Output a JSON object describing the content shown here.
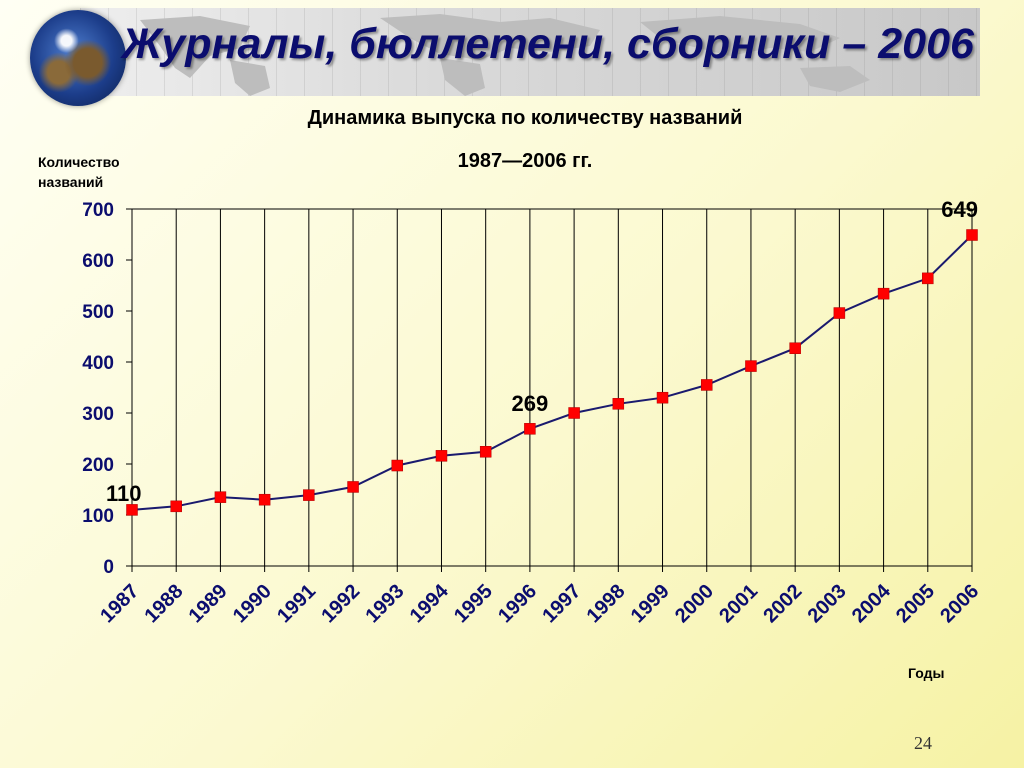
{
  "slide": {
    "title": "Журналы, бюллетени, сборники – 2006",
    "page_number": "24"
  },
  "colors": {
    "title": "#0b0d6e",
    "axis_text": "#0b0d6e",
    "line": "#1a1a6e",
    "marker": "#ff0000",
    "grid": "#000000"
  },
  "chart_data": {
    "type": "line",
    "title": "Динамика выпуска по количеству названий",
    "subtitle": "1987—2006 гг.",
    "ylabel": "Количество названий",
    "xlabel": "Годы",
    "categories": [
      "1987",
      "1988",
      "1989",
      "1990",
      "1991",
      "1992",
      "1993",
      "1994",
      "1995",
      "1996",
      "1997",
      "1998",
      "1999",
      "2000",
      "2001",
      "2002",
      "2003",
      "2004",
      "2005",
      "2006"
    ],
    "values": [
      110,
      117,
      135,
      130,
      139,
      155,
      197,
      216,
      224,
      269,
      300,
      318,
      330,
      355,
      392,
      427,
      496,
      534,
      564,
      649
    ],
    "ylim": [
      0,
      700
    ],
    "yticks": [
      0,
      100,
      200,
      300,
      400,
      500,
      600,
      700
    ],
    "grid": "vertical",
    "data_labels": [
      {
        "index": 0,
        "text": "110"
      },
      {
        "index": 9,
        "text": "269"
      },
      {
        "index": 19,
        "text": "649"
      }
    ]
  }
}
